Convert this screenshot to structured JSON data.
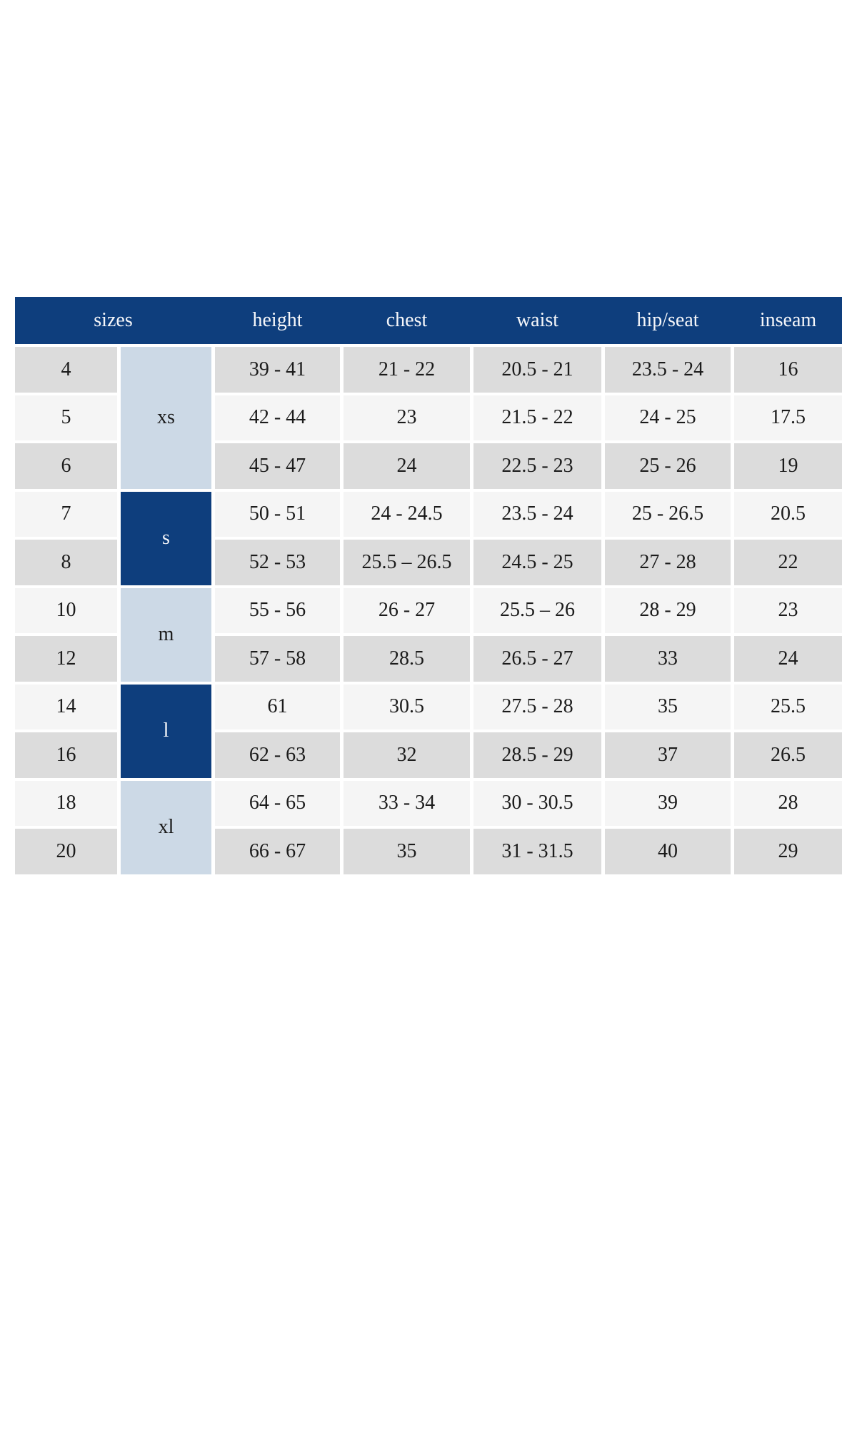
{
  "table": {
    "columns": [
      "sizes",
      "height",
      "chest",
      "waist",
      "hip/seat",
      "inseam"
    ],
    "size_groups": [
      {
        "label": "xs",
        "spans_sizes": [
          "4",
          "5",
          "6"
        ],
        "style": "light-blue"
      },
      {
        "label": "s",
        "spans_sizes": [
          "7",
          "8"
        ],
        "style": "dark-blue"
      },
      {
        "label": "m",
        "spans_sizes": [
          "10",
          "12"
        ],
        "style": "light-blue"
      },
      {
        "label": "l",
        "spans_sizes": [
          "14",
          "16"
        ],
        "style": "dark-blue"
      },
      {
        "label": "xl",
        "spans_sizes": [
          "18",
          "20"
        ],
        "style": "light-blue"
      }
    ],
    "rows": [
      {
        "size": "4",
        "height": "39 - 41",
        "chest": "21 - 22",
        "waist": "20.5 - 21",
        "hip_seat": "23.5 - 24",
        "inseam": "16"
      },
      {
        "size": "5",
        "height": "42 - 44",
        "chest": "23",
        "waist": "21.5 - 22",
        "hip_seat": "24 - 25",
        "inseam": "17.5"
      },
      {
        "size": "6",
        "height": "45 - 47",
        "chest": "24",
        "waist": "22.5 - 23",
        "hip_seat": "25 - 26",
        "inseam": "19"
      },
      {
        "size": "7",
        "height": "50 - 51",
        "chest": "24 - 24.5",
        "waist": "23.5 - 24",
        "hip_seat": "25 - 26.5",
        "inseam": "20.5"
      },
      {
        "size": "8",
        "height": "52 - 53",
        "chest": "25.5 – 26.5",
        "waist": "24.5 - 25",
        "hip_seat": "27 - 28",
        "inseam": "22"
      },
      {
        "size": "10",
        "height": "55 - 56",
        "chest": "26 - 27",
        "waist": "25.5 – 26",
        "hip_seat": "28 - 29",
        "inseam": "23"
      },
      {
        "size": "12",
        "height": "57 - 58",
        "chest": "28.5",
        "waist": "26.5 - 27",
        "hip_seat": "33",
        "inseam": "24"
      },
      {
        "size": "14",
        "height": "61",
        "chest": "30.5",
        "waist": "27.5 - 28",
        "hip_seat": "35",
        "inseam": "25.5"
      },
      {
        "size": "16",
        "height": "62 - 63",
        "chest": "32",
        "waist": "28.5 - 29",
        "hip_seat": "37",
        "inseam": "26.5"
      },
      {
        "size": "18",
        "height": "64 - 65",
        "chest": "33 - 34",
        "waist": "30 - 30.5",
        "hip_seat": "39",
        "inseam": "28"
      },
      {
        "size": "20",
        "height": "66 - 67",
        "chest": "35",
        "waist": "31 - 31.5",
        "hip_seat": "40",
        "inseam": "29"
      }
    ],
    "colors": {
      "header_bg": "#0e3e7d",
      "header_text": "#f6f7fa",
      "group_light_blue": "#ccd9e6",
      "group_dark_blue": "#0e3e7d",
      "row_gray": "#dcdcdc",
      "row_light": "#f5f5f5",
      "body_text": "#1b1b1b",
      "page_bg": "#ffffff"
    }
  }
}
